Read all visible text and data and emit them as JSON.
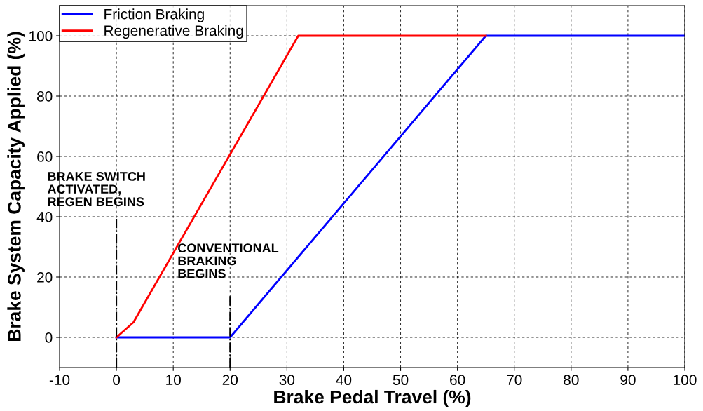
{
  "chart_data": {
    "type": "line",
    "xlabel": "Brake Pedal Travel (%)",
    "ylabel": "Brake System Capacity Applied (%)",
    "series": [
      {
        "name": "Friction Braking",
        "color": "#0000ff",
        "x": [
          0,
          20,
          65,
          100
        ],
        "values": [
          0,
          0,
          100,
          100
        ]
      },
      {
        "name": "Regenerative Braking",
        "color": "#ff0000",
        "x": [
          0,
          3,
          32,
          65
        ],
        "values": [
          0,
          5,
          100,
          100
        ]
      }
    ],
    "xlim": [
      -10,
      100
    ],
    "xticks": [
      -10,
      0,
      10,
      20,
      30,
      40,
      50,
      60,
      70,
      80,
      90,
      100
    ],
    "ylim": [
      -10,
      110
    ],
    "yticks": [
      0,
      20,
      40,
      60,
      80,
      100
    ],
    "grid": true,
    "legend": "top left",
    "marker": "none",
    "line_style": "solid",
    "ref_lines": [
      {
        "axis": "x",
        "value": 0,
        "label": "BRAKE SWITCH\nACTIVATED,\nREGEN BEGINS",
        "color": "#000000",
        "line_style": "dashdot"
      },
      {
        "axis": "x",
        "value": 20,
        "label": "CONVENTIONAL\nBRAKING\nBEGINS",
        "color": "#000000",
        "line_style": "dashdot"
      }
    ]
  }
}
